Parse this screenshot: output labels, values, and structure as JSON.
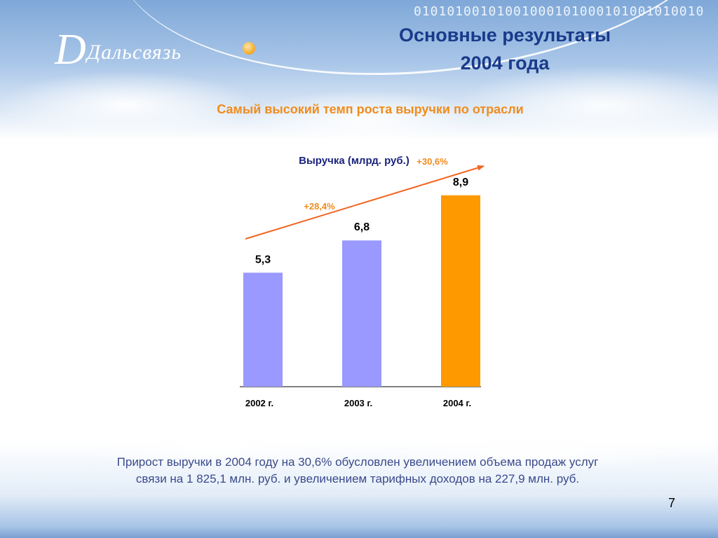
{
  "header": {
    "logo_text": "Дальсвязь",
    "title_line1": "Основные результаты",
    "title_line2": "2004 года",
    "binary_decoration": "01010100101001000101000101001010010"
  },
  "subtitle": "Самый высокий темп роста выручки по отрасли",
  "chart_data": {
    "type": "bar",
    "title": "Выручка (млрд. руб.)",
    "categories": [
      "2002 г.",
      "2003 г.",
      "2004 г."
    ],
    "values": [
      5.3,
      6.8,
      8.9
    ],
    "value_labels": [
      "5,3",
      "6,8",
      "8,9"
    ],
    "growth_labels": [
      "+28,4%",
      "+30,6%"
    ],
    "bar_colors": [
      "#9999ff",
      "#9999ff",
      "#ff9900"
    ],
    "ylim": [
      0,
      10
    ],
    "grid": false,
    "legend": "none",
    "trend_arrow_color": "#f26522"
  },
  "description": {
    "line1": "Прирост выручки в 2004 году на 30,6% обусловлен увеличением объема продаж услуг",
    "line2": "связи на 1 825,1 млн. руб. и увеличением тарифных доходов на 227,9 млн. руб."
  },
  "page_number": "7"
}
